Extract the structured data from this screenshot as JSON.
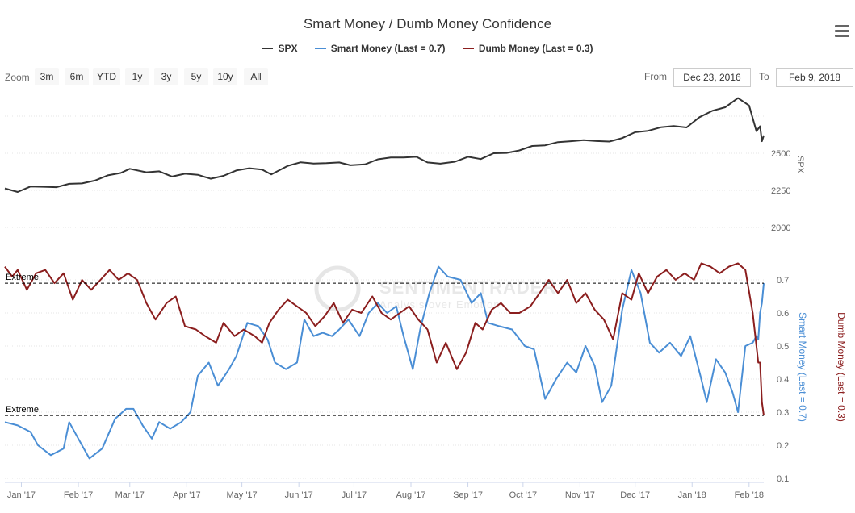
{
  "title": "Smart Money / Dumb Money Confidence",
  "legend": [
    {
      "name": "SPX",
      "color": "#333333"
    },
    {
      "name": "Smart Money (Last = 0.7)",
      "color": "#4a8ed5"
    },
    {
      "name": "Dumb Money (Last = 0.3)",
      "color": "#8b1e1e"
    }
  ],
  "menu_icon": "hamburger-menu-icon",
  "zoom": {
    "label": "Zoom",
    "buttons": [
      "3m",
      "6m",
      "YTD",
      "1y",
      "3y",
      "5y",
      "10y",
      "All"
    ]
  },
  "range": {
    "from_label": "From",
    "from_value": "Dec 23, 2016",
    "to_label": "To",
    "to_value": "Feb 9, 2018"
  },
  "watermark": {
    "main": "SENTIMENTRADER",
    "sub": "Analysis over Emotion"
  },
  "chart_data": {
    "type": "line",
    "x_labels": [
      "Jan '17",
      "Feb '17",
      "Mar '17",
      "Apr '17",
      "May '17",
      "Jun '17",
      "Jul '17",
      "Aug '17",
      "Sep '17",
      "Oct '17",
      "Nov '17",
      "Dec '17",
      "Jan '18",
      "Feb '18"
    ],
    "x_dates": [
      "2017-01-01",
      "2017-02-01",
      "2017-03-01",
      "2017-04-01",
      "2017-05-01",
      "2017-06-01",
      "2017-07-01",
      "2017-08-01",
      "2017-09-01",
      "2017-10-01",
      "2017-11-01",
      "2017-12-01",
      "2018-01-01",
      "2018-02-01"
    ],
    "x_range": [
      "2016-12-23",
      "2018-02-09"
    ],
    "spx_axis": {
      "title": "SPX",
      "ticks": [
        2000,
        2250,
        2500
      ],
      "tick_labels": [
        "2000",
        "2250",
        "2500"
      ]
    },
    "confidence_axis": {
      "ticks": [
        0.1,
        0.2,
        0.3,
        0.4,
        0.5,
        0.6,
        0.7
      ],
      "tick_labels": [
        "0.1",
        "0.2",
        "0.3",
        "0.4",
        "0.5",
        "0.6",
        "0.7"
      ],
      "smart_title": "Smart Money (Last = 0.7)",
      "dumb_title": "Dumb Money (Last = 0.3)"
    },
    "extreme_lines": [
      {
        "label": "Extreme",
        "value": 0.69
      },
      {
        "label": "Extreme",
        "value": 0.29
      }
    ],
    "series": [
      {
        "name": "SPX",
        "color": "#333333",
        "axis": "spx",
        "points": [
          [
            "2016-12-23",
            2263
          ],
          [
            "2016-12-30",
            2239
          ],
          [
            "2017-01-06",
            2276
          ],
          [
            "2017-01-13",
            2274
          ],
          [
            "2017-01-20",
            2271
          ],
          [
            "2017-01-27",
            2294
          ],
          [
            "2017-02-03",
            2297
          ],
          [
            "2017-02-10",
            2316
          ],
          [
            "2017-02-17",
            2351
          ],
          [
            "2017-02-24",
            2367
          ],
          [
            "2017-03-01",
            2395
          ],
          [
            "2017-03-10",
            2372
          ],
          [
            "2017-03-17",
            2378
          ],
          [
            "2017-03-24",
            2343
          ],
          [
            "2017-03-31",
            2362
          ],
          [
            "2017-04-07",
            2355
          ],
          [
            "2017-04-14",
            2328
          ],
          [
            "2017-04-21",
            2348
          ],
          [
            "2017-04-28",
            2384
          ],
          [
            "2017-05-05",
            2399
          ],
          [
            "2017-05-12",
            2390
          ],
          [
            "2017-05-17",
            2357
          ],
          [
            "2017-05-26",
            2415
          ],
          [
            "2017-06-02",
            2439
          ],
          [
            "2017-06-09",
            2431
          ],
          [
            "2017-06-16",
            2433
          ],
          [
            "2017-06-23",
            2438
          ],
          [
            "2017-06-29",
            2419
          ],
          [
            "2017-07-07",
            2425
          ],
          [
            "2017-07-14",
            2459
          ],
          [
            "2017-07-21",
            2472
          ],
          [
            "2017-07-28",
            2472
          ],
          [
            "2017-08-04",
            2476
          ],
          [
            "2017-08-10",
            2438
          ],
          [
            "2017-08-17",
            2430
          ],
          [
            "2017-08-25",
            2443
          ],
          [
            "2017-09-01",
            2476
          ],
          [
            "2017-09-08",
            2461
          ],
          [
            "2017-09-15",
            2500
          ],
          [
            "2017-09-22",
            2502
          ],
          [
            "2017-09-29",
            2519
          ],
          [
            "2017-10-06",
            2549
          ],
          [
            "2017-10-13",
            2553
          ],
          [
            "2017-10-20",
            2575
          ],
          [
            "2017-10-27",
            2581
          ],
          [
            "2017-11-03",
            2588
          ],
          [
            "2017-11-10",
            2582
          ],
          [
            "2017-11-17",
            2579
          ],
          [
            "2017-11-24",
            2602
          ],
          [
            "2017-12-01",
            2642
          ],
          [
            "2017-12-08",
            2651
          ],
          [
            "2017-12-15",
            2675
          ],
          [
            "2017-12-22",
            2683
          ],
          [
            "2017-12-29",
            2674
          ],
          [
            "2018-01-05",
            2743
          ],
          [
            "2018-01-12",
            2786
          ],
          [
            "2018-01-19",
            2810
          ],
          [
            "2018-01-26",
            2872
          ],
          [
            "2018-02-01",
            2822
          ],
          [
            "2018-02-05",
            2649
          ],
          [
            "2018-02-07",
            2682
          ],
          [
            "2018-02-08",
            2581
          ],
          [
            "2018-02-09",
            2620
          ]
        ]
      },
      {
        "name": "Smart Money (Last = 0.7)",
        "color": "#4a8ed5",
        "axis": "confidence",
        "points": [
          [
            "2016-12-23",
            0.27
          ],
          [
            "2016-12-30",
            0.26
          ],
          [
            "2017-01-06",
            0.24
          ],
          [
            "2017-01-10",
            0.2
          ],
          [
            "2017-01-17",
            0.17
          ],
          [
            "2017-01-24",
            0.19
          ],
          [
            "2017-01-27",
            0.27
          ],
          [
            "2017-02-01",
            0.22
          ],
          [
            "2017-02-07",
            0.16
          ],
          [
            "2017-02-14",
            0.19
          ],
          [
            "2017-02-21",
            0.28
          ],
          [
            "2017-02-27",
            0.31
          ],
          [
            "2017-03-03",
            0.31
          ],
          [
            "2017-03-08",
            0.26
          ],
          [
            "2017-03-13",
            0.22
          ],
          [
            "2017-03-17",
            0.27
          ],
          [
            "2017-03-23",
            0.25
          ],
          [
            "2017-03-29",
            0.27
          ],
          [
            "2017-04-03",
            0.3
          ],
          [
            "2017-04-07",
            0.41
          ],
          [
            "2017-04-13",
            0.45
          ],
          [
            "2017-04-18",
            0.38
          ],
          [
            "2017-04-24",
            0.43
          ],
          [
            "2017-04-28",
            0.47
          ],
          [
            "2017-05-04",
            0.57
          ],
          [
            "2017-05-10",
            0.56
          ],
          [
            "2017-05-15",
            0.52
          ],
          [
            "2017-05-19",
            0.45
          ],
          [
            "2017-05-25",
            0.43
          ],
          [
            "2017-05-31",
            0.45
          ],
          [
            "2017-06-04",
            0.58
          ],
          [
            "2017-06-09",
            0.53
          ],
          [
            "2017-06-14",
            0.54
          ],
          [
            "2017-06-19",
            0.53
          ],
          [
            "2017-06-23",
            0.55
          ],
          [
            "2017-06-28",
            0.58
          ],
          [
            "2017-07-04",
            0.53
          ],
          [
            "2017-07-09",
            0.6
          ],
          [
            "2017-07-14",
            0.63
          ],
          [
            "2017-07-19",
            0.6
          ],
          [
            "2017-07-24",
            0.62
          ],
          [
            "2017-07-28",
            0.53
          ],
          [
            "2017-08-02",
            0.43
          ],
          [
            "2017-08-06",
            0.55
          ],
          [
            "2017-08-11",
            0.66
          ],
          [
            "2017-08-16",
            0.74
          ],
          [
            "2017-08-21",
            0.71
          ],
          [
            "2017-08-28",
            0.7
          ],
          [
            "2017-09-03",
            0.63
          ],
          [
            "2017-09-08",
            0.66
          ],
          [
            "2017-09-12",
            0.57
          ],
          [
            "2017-09-18",
            0.56
          ],
          [
            "2017-09-25",
            0.55
          ],
          [
            "2017-10-02",
            0.5
          ],
          [
            "2017-10-07",
            0.49
          ],
          [
            "2017-10-13",
            0.34
          ],
          [
            "2017-10-19",
            0.4
          ],
          [
            "2017-10-25",
            0.45
          ],
          [
            "2017-10-30",
            0.42
          ],
          [
            "2017-11-04",
            0.5
          ],
          [
            "2017-11-09",
            0.44
          ],
          [
            "2017-11-13",
            0.33
          ],
          [
            "2017-11-18",
            0.38
          ],
          [
            "2017-11-24",
            0.61
          ],
          [
            "2017-11-29",
            0.73
          ],
          [
            "2017-12-04",
            0.66
          ],
          [
            "2017-12-09",
            0.51
          ],
          [
            "2017-12-14",
            0.48
          ],
          [
            "2017-12-20",
            0.51
          ],
          [
            "2017-12-26",
            0.47
          ],
          [
            "2017-12-31",
            0.53
          ],
          [
            "2018-01-06",
            0.4
          ],
          [
            "2018-01-09",
            0.33
          ],
          [
            "2018-01-14",
            0.46
          ],
          [
            "2018-01-19",
            0.42
          ],
          [
            "2018-01-23",
            0.36
          ],
          [
            "2018-01-26",
            0.3
          ],
          [
            "2018-01-30",
            0.5
          ],
          [
            "2018-02-03",
            0.51
          ],
          [
            "2018-02-05",
            0.53
          ],
          [
            "2018-02-06",
            0.52
          ],
          [
            "2018-02-07",
            0.6
          ],
          [
            "2018-02-08",
            0.63
          ],
          [
            "2018-02-09",
            0.69
          ]
        ]
      },
      {
        "name": "Dumb Money (Last = 0.3)",
        "color": "#8b1e1e",
        "axis": "confidence",
        "points": [
          [
            "2016-12-23",
            0.74
          ],
          [
            "2016-12-27",
            0.71
          ],
          [
            "2016-12-30",
            0.73
          ],
          [
            "2017-01-04",
            0.67
          ],
          [
            "2017-01-09",
            0.72
          ],
          [
            "2017-01-14",
            0.73
          ],
          [
            "2017-01-19",
            0.69
          ],
          [
            "2017-01-24",
            0.72
          ],
          [
            "2017-01-29",
            0.64
          ],
          [
            "2017-02-03",
            0.7
          ],
          [
            "2017-02-08",
            0.67
          ],
          [
            "2017-02-13",
            0.7
          ],
          [
            "2017-02-18",
            0.73
          ],
          [
            "2017-02-23",
            0.7
          ],
          [
            "2017-02-28",
            0.72
          ],
          [
            "2017-03-05",
            0.7
          ],
          [
            "2017-03-10",
            0.63
          ],
          [
            "2017-03-15",
            0.58
          ],
          [
            "2017-03-21",
            0.63
          ],
          [
            "2017-03-26",
            0.65
          ],
          [
            "2017-03-31",
            0.56
          ],
          [
            "2017-04-06",
            0.55
          ],
          [
            "2017-04-11",
            0.53
          ],
          [
            "2017-04-17",
            0.51
          ],
          [
            "2017-04-21",
            0.57
          ],
          [
            "2017-04-27",
            0.53
          ],
          [
            "2017-05-02",
            0.55
          ],
          [
            "2017-05-08",
            0.53
          ],
          [
            "2017-05-12",
            0.51
          ],
          [
            "2017-05-16",
            0.57
          ],
          [
            "2017-05-21",
            0.61
          ],
          [
            "2017-05-26",
            0.64
          ],
          [
            "2017-05-31",
            0.62
          ],
          [
            "2017-06-05",
            0.6
          ],
          [
            "2017-06-10",
            0.56
          ],
          [
            "2017-06-15",
            0.59
          ],
          [
            "2017-06-20",
            0.63
          ],
          [
            "2017-06-25",
            0.57
          ],
          [
            "2017-06-30",
            0.61
          ],
          [
            "2017-07-05",
            0.6
          ],
          [
            "2017-07-11",
            0.65
          ],
          [
            "2017-07-16",
            0.6
          ],
          [
            "2017-07-21",
            0.58
          ],
          [
            "2017-07-26",
            0.6
          ],
          [
            "2017-07-31",
            0.62
          ],
          [
            "2017-08-05",
            0.58
          ],
          [
            "2017-08-10",
            0.55
          ],
          [
            "2017-08-15",
            0.45
          ],
          [
            "2017-08-20",
            0.51
          ],
          [
            "2017-08-26",
            0.43
          ],
          [
            "2017-08-31",
            0.48
          ],
          [
            "2017-09-05",
            0.57
          ],
          [
            "2017-09-09",
            0.55
          ],
          [
            "2017-09-14",
            0.61
          ],
          [
            "2017-09-19",
            0.63
          ],
          [
            "2017-09-24",
            0.6
          ],
          [
            "2017-09-29",
            0.6
          ],
          [
            "2017-10-05",
            0.62
          ],
          [
            "2017-10-10",
            0.66
          ],
          [
            "2017-10-15",
            0.7
          ],
          [
            "2017-10-20",
            0.66
          ],
          [
            "2017-10-25",
            0.7
          ],
          [
            "2017-10-30",
            0.63
          ],
          [
            "2017-11-04",
            0.66
          ],
          [
            "2017-11-09",
            0.61
          ],
          [
            "2017-11-14",
            0.58
          ],
          [
            "2017-11-19",
            0.52
          ],
          [
            "2017-11-24",
            0.66
          ],
          [
            "2017-11-29",
            0.64
          ],
          [
            "2017-12-03",
            0.72
          ],
          [
            "2017-12-08",
            0.66
          ],
          [
            "2017-12-13",
            0.71
          ],
          [
            "2017-12-18",
            0.73
          ],
          [
            "2017-12-23",
            0.7
          ],
          [
            "2017-12-28",
            0.72
          ],
          [
            "2018-01-02",
            0.7
          ],
          [
            "2018-01-06",
            0.75
          ],
          [
            "2018-01-11",
            0.74
          ],
          [
            "2018-01-16",
            0.72
          ],
          [
            "2018-01-21",
            0.74
          ],
          [
            "2018-01-26",
            0.75
          ],
          [
            "2018-01-30",
            0.73
          ],
          [
            "2018-02-03",
            0.6
          ],
          [
            "2018-02-05",
            0.5
          ],
          [
            "2018-02-06",
            0.45
          ],
          [
            "2018-02-07",
            0.45
          ],
          [
            "2018-02-08",
            0.33
          ],
          [
            "2018-02-09",
            0.29
          ]
        ]
      }
    ]
  }
}
